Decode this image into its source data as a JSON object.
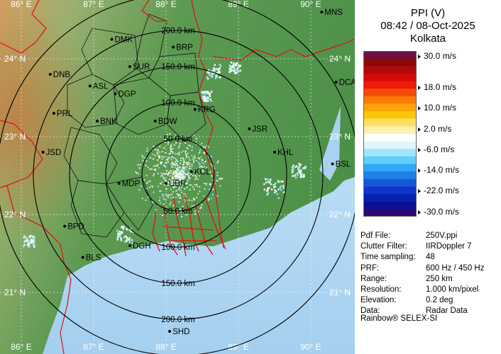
{
  "header": {
    "product": "PPI (V)",
    "datetime": "08:42 / 08-Oct-2025",
    "station": "Kolkata"
  },
  "colorbar": {
    "colors": [
      "#6b0f46",
      "#8a0a0a",
      "#b00a0a",
      "#d40a0a",
      "#ee1b0a",
      "#f74a0a",
      "#fb7a0a",
      "#fca40a",
      "#fdc40a",
      "#fde060",
      "#fdf0b0",
      "#ffffff",
      "#dff6fc",
      "#9fe6fb",
      "#5fd0f9",
      "#2fa8f5",
      "#1f80e8",
      "#1858d8",
      "#1036c8",
      "#0a20b0",
      "#0a1090",
      "#2a0a70"
    ],
    "labels": [
      {
        "text": "30.0 m/s",
        "slot": 0.5
      },
      {
        "text": "18.0 m/s",
        "slot": 3.5
      },
      {
        "text": "10.0 m/s",
        "slot": 5.5
      },
      {
        "text": "2.0 m/s",
        "slot": 7.5
      },
      {
        "text": "-6.0 m/s",
        "slot": 9.5
      },
      {
        "text": "-14.0 m/s",
        "slot": 11.5
      },
      {
        "text": "-22.0 m/s",
        "slot": 13.5
      },
      {
        "text": "-30.0 m/s",
        "slot": 15.5
      }
    ]
  },
  "info": [
    {
      "key": "Pdf File:",
      "value": "250V.ppi"
    },
    {
      "key": "Clutter Filter:",
      "value": "IIRDoppler 7"
    },
    {
      "key": "Time sampling:",
      "value": "48"
    },
    {
      "key": "PRF:",
      "value": "600 Hz / 450 Hz"
    },
    {
      "key": "Range:",
      "value": "250 km"
    },
    {
      "key": "Resolution:",
      "value": "1.000 km/pixel"
    },
    {
      "key": "Elevation:",
      "value": "0.2 deg"
    },
    {
      "key": "Data:",
      "value": "Radar Data"
    }
  ],
  "credit": "Rainbow® SELEX-SI",
  "map": {
    "lon_ticks": [
      "86° E",
      "87° E",
      "88° E",
      "89° E",
      "90° E"
    ],
    "lat_ticks": [
      "24° N",
      "23° N",
      "22° N",
      "21° N"
    ],
    "range_rings": [
      "50.0 km",
      "100.0 km",
      "150.0 km",
      "200.0 km"
    ],
    "cities": [
      {
        "code": "MNS",
        "lon": 90.15,
        "lat": 24.6
      },
      {
        "code": "DMK",
        "lon": 87.25,
        "lat": 24.25
      },
      {
        "code": "BRP",
        "lon": 88.1,
        "lat": 24.15
      },
      {
        "code": "DNB",
        "lon": 86.4,
        "lat": 23.8
      },
      {
        "code": "SUR",
        "lon": 87.5,
        "lat": 23.9
      },
      {
        "code": "ASL",
        "lon": 86.95,
        "lat": 23.65
      },
      {
        "code": "DCA",
        "lon": 90.35,
        "lat": 23.7
      },
      {
        "code": "DGP",
        "lon": 87.3,
        "lat": 23.55
      },
      {
        "code": "KRG",
        "lon": 88.4,
        "lat": 23.35
      },
      {
        "code": "PRL",
        "lon": 86.45,
        "lat": 23.3
      },
      {
        "code": "BNK",
        "lon": 87.05,
        "lat": 23.2
      },
      {
        "code": "BDW",
        "lon": 87.85,
        "lat": 23.2
      },
      {
        "code": "JSR",
        "lon": 89.15,
        "lat": 23.1
      },
      {
        "code": "KOL",
        "lon": 88.35,
        "lat": 22.55
      },
      {
        "code": "JSD",
        "lon": 86.3,
        "lat": 22.8
      },
      {
        "code": "KHL",
        "lon": 89.5,
        "lat": 22.8
      },
      {
        "code": "BSL",
        "lon": 90.3,
        "lat": 22.65
      },
      {
        "code": "MDP",
        "lon": 87.35,
        "lat": 22.4
      },
      {
        "code": "UBR",
        "lon": 88.0,
        "lat": 22.4
      },
      {
        "code": "BPD",
        "lon": 86.6,
        "lat": 21.85
      },
      {
        "code": "DGH",
        "lon": 87.5,
        "lat": 21.6
      },
      {
        "code": "BLS",
        "lon": 86.85,
        "lat": 21.45
      },
      {
        "code": "SHD",
        "lon": 88.05,
        "lat": 20.5
      }
    ]
  }
}
